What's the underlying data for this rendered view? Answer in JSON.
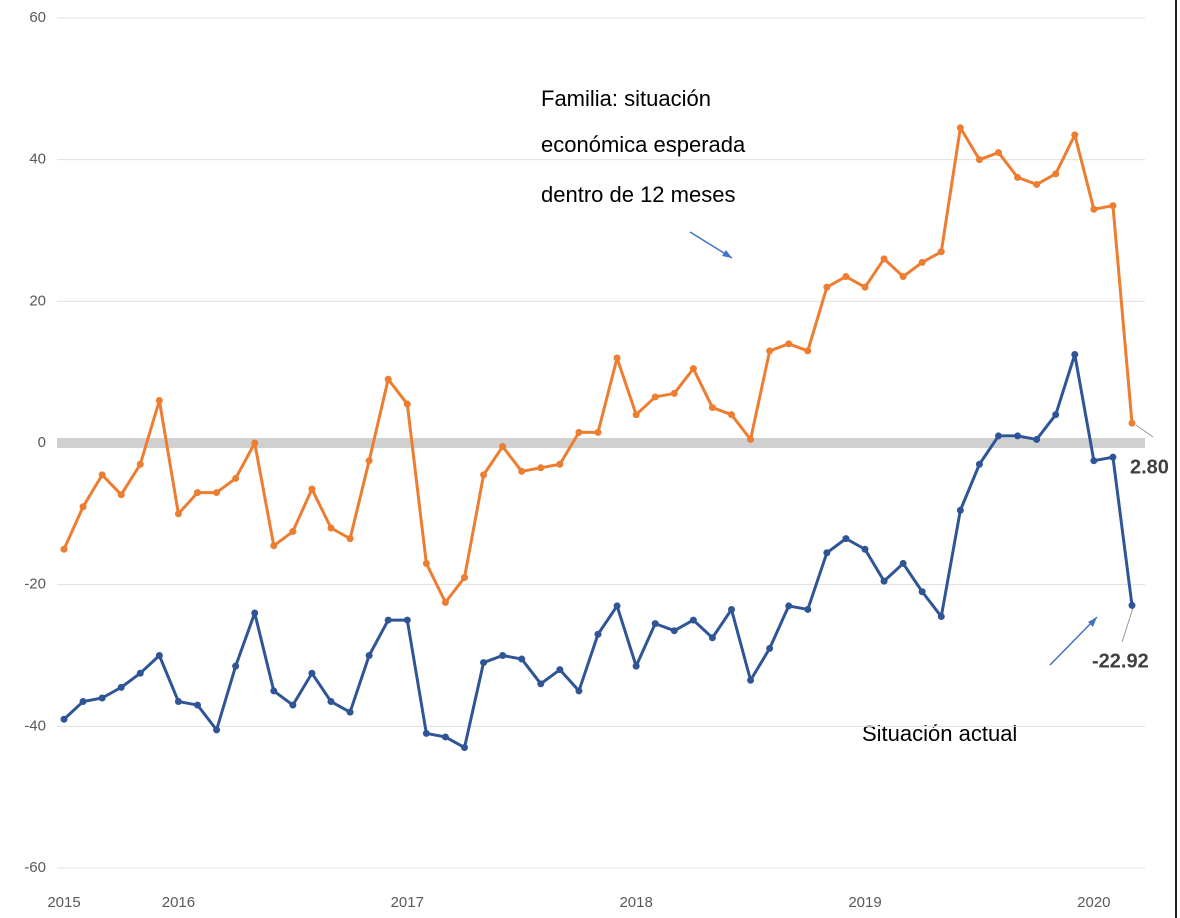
{
  "chart_data": {
    "type": "line",
    "annotations": [
      "Familia: situación",
      "económica esperada",
      "dentro de 12 meses",
      "Situación actual"
    ],
    "categories": [
      "2015",
      null,
      null,
      null,
      null,
      null,
      "2016",
      null,
      null,
      null,
      null,
      null,
      null,
      null,
      null,
      null,
      null,
      null,
      "2017",
      null,
      null,
      null,
      null,
      null,
      null,
      null,
      null,
      null,
      null,
      null,
      "2018",
      null,
      null,
      null,
      null,
      null,
      null,
      null,
      null,
      null,
      null,
      null,
      "2019",
      null,
      null,
      null,
      null,
      null,
      null,
      null,
      null,
      null,
      null,
      null,
      "2020",
      null,
      null
    ],
    "series": [
      {
        "color": "#ed7d31",
        "values": [
          -15,
          -9,
          -4.5,
          -7.3,
          -3,
          6,
          -10,
          -7,
          -7,
          -5,
          0,
          -14.5,
          -12.5,
          -6.5,
          -12,
          -13.5,
          -2.5,
          9,
          5.5,
          -17,
          -22.5,
          -19,
          -4.5,
          -0.5,
          -4,
          -3.5,
          -3,
          1.5,
          1.5,
          12,
          4,
          6.5,
          7,
          10.5,
          5,
          4,
          0.5,
          13,
          14,
          13,
          22,
          23.5,
          22,
          26,
          23.5,
          25.5,
          27,
          44.5,
          40,
          41,
          37.5,
          36.5,
          38,
          43.5,
          33,
          33.5,
          2.8
        ],
        "value_labels": [
          null,
          null,
          null,
          null,
          null,
          null,
          null,
          null,
          null,
          null,
          null,
          null,
          null,
          null,
          null,
          null,
          null,
          null,
          null,
          null,
          null,
          null,
          null,
          null,
          null,
          null,
          null,
          null,
          null,
          null,
          null,
          null,
          null,
          null,
          null,
          null,
          null,
          null,
          null,
          null,
          null,
          null,
          null,
          null,
          null,
          null,
          null,
          null,
          null,
          null,
          null,
          null,
          null,
          null,
          null,
          null,
          "2.80"
        ]
      },
      {
        "color": "#2f5597",
        "values": [
          -39,
          -36.5,
          -36,
          -34.5,
          -32.5,
          -30,
          -36.5,
          -37,
          -40.5,
          -31.5,
          -24,
          -35,
          -37,
          -32.5,
          -36.5,
          -38,
          -30,
          -25,
          -25,
          -41,
          -41.5,
          -43,
          -31,
          -30,
          -30.5,
          -34,
          -32,
          -35,
          -27,
          -23,
          -31.5,
          -25.5,
          -26.5,
          -25,
          -27.5,
          -23.5,
          -33.5,
          -29,
          -23,
          -23.5,
          -15.5,
          -13.5,
          -15,
          -19.5,
          -17,
          -21,
          -24.5,
          -9.5,
          -3,
          1,
          1,
          0.5,
          4,
          12.5,
          -2.5,
          -2,
          -22.92
        ]
      }
    ],
    "ylim": [
      -60,
      60
    ],
    "yticks": [
      -60,
      -40,
      -20,
      0,
      20,
      40,
      60
    ],
    "grid": true
  }
}
